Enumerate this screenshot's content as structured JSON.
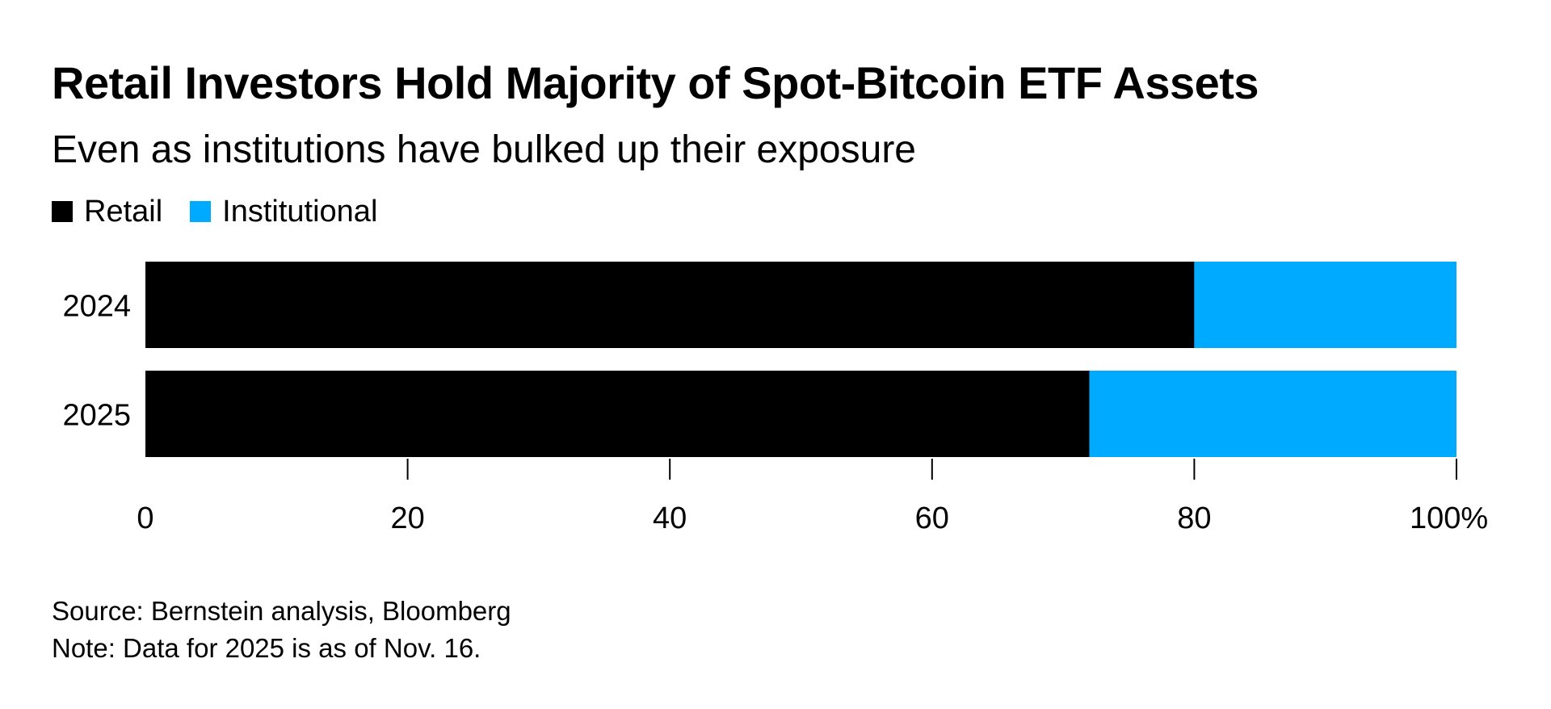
{
  "title": "Retail Investors Hold Majority of Spot-Bitcoin ETF Assets",
  "subtitle": "Even as institutions have bulked up their exposure",
  "source": "Source: Bernstein analysis, Bloomberg",
  "note": "Note: Data for 2025 is as of Nov. 16.",
  "colors": {
    "retail": "#000000",
    "institutional": "#00aaff"
  },
  "chart_data": {
    "type": "bar",
    "orientation": "horizontal",
    "stacked": true,
    "title": "Retail Investors Hold Majority of Spot-Bitcoin ETF Assets",
    "subtitle": "Even as institutions have bulked up their exposure",
    "categories": [
      "2024",
      "2025"
    ],
    "series": [
      {
        "name": "Retail",
        "color": "#000000",
        "values": [
          80,
          72
        ]
      },
      {
        "name": "Institutional",
        "color": "#00aaff",
        "values": [
          20,
          28
        ]
      }
    ],
    "xlim": [
      0,
      100
    ],
    "x_ticks": [
      0,
      20,
      40,
      60,
      80,
      100
    ],
    "x_tick_labels": [
      "0",
      "20",
      "40",
      "60",
      "80",
      "100%"
    ],
    "legend_position": "top-left",
    "grid": false
  }
}
